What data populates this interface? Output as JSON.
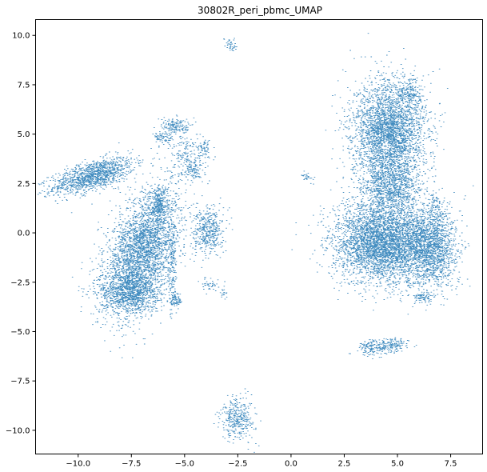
{
  "chart_data": {
    "type": "scatter",
    "title": "30802R_peri_pbmc_UMAP",
    "xlabel": "",
    "ylabel": "",
    "xlim": [
      -12,
      9
    ],
    "ylim": [
      -11.2,
      10.8
    ],
    "xticks": [
      -10.0,
      -7.5,
      -5.0,
      -2.5,
      0.0,
      2.5,
      5.0,
      7.5
    ],
    "xtick_labels": [
      "−10.0",
      "−7.5",
      "−5.0",
      "−2.5",
      "0.0",
      "2.5",
      "5.0",
      "7.5"
    ],
    "yticks": [
      10.0,
      7.5,
      5.0,
      2.5,
      0.0,
      -2.5,
      -5.0,
      -7.5,
      -10.0
    ],
    "ytick_labels": [
      "10.0",
      "7.5",
      "5.0",
      "2.5",
      "0.0",
      "−2.5",
      "−5.0",
      "−7.5",
      "−10.0"
    ],
    "grid": false,
    "marker_color": "#1f77b4",
    "approx_point_count": 20000,
    "clusters": [
      {
        "cx": -9.3,
        "cy": 2.9,
        "sx": 1.0,
        "sy": 0.35,
        "angle": 18,
        "weight": 0.065
      },
      {
        "cx": -7.0,
        "cy": -0.9,
        "sx": 0.75,
        "sy": 1.55,
        "angle": -18,
        "weight": 0.16
      },
      {
        "cx": -7.6,
        "cy": -3.0,
        "sx": 0.7,
        "sy": 0.55,
        "angle": 0,
        "weight": 0.05
      },
      {
        "cx": -6.2,
        "cy": 1.5,
        "sx": 0.2,
        "sy": 0.45,
        "angle": 0,
        "weight": 0.012
      },
      {
        "cx": -5.6,
        "cy": -1.8,
        "sx": 0.1,
        "sy": 1.2,
        "angle": 0,
        "weight": 0.008
      },
      {
        "cx": -5.4,
        "cy": -3.4,
        "sx": 0.15,
        "sy": 0.2,
        "angle": 0,
        "weight": 0.004
      },
      {
        "cx": -5.4,
        "cy": 5.4,
        "sx": 0.35,
        "sy": 0.2,
        "angle": 0,
        "weight": 0.008
      },
      {
        "cx": -6.0,
        "cy": 4.8,
        "sx": 0.25,
        "sy": 0.18,
        "angle": 0,
        "weight": 0.004
      },
      {
        "cx": -4.9,
        "cy": 3.9,
        "sx": 0.4,
        "sy": 0.6,
        "angle": 0,
        "weight": 0.01
      },
      {
        "cx": -4.6,
        "cy": 3.2,
        "sx": 0.25,
        "sy": 0.25,
        "angle": 0,
        "weight": 0.004
      },
      {
        "cx": -4.1,
        "cy": 4.2,
        "sx": 0.15,
        "sy": 0.25,
        "angle": 0,
        "weight": 0.003
      },
      {
        "cx": -3.9,
        "cy": 0.1,
        "sx": 0.35,
        "sy": 0.6,
        "angle": 0,
        "weight": 0.022
      },
      {
        "cx": -3.8,
        "cy": -2.6,
        "sx": 0.2,
        "sy": 0.15,
        "angle": 0,
        "weight": 0.002
      },
      {
        "cx": -3.2,
        "cy": -3.1,
        "sx": 0.08,
        "sy": 0.2,
        "angle": 0,
        "weight": 0.001
      },
      {
        "cx": -2.85,
        "cy": 9.55,
        "sx": 0.12,
        "sy": 0.2,
        "angle": 30,
        "weight": 0.002
      },
      {
        "cx": 0.75,
        "cy": 2.8,
        "sx": 0.2,
        "sy": 0.08,
        "angle": -35,
        "weight": 0.0015
      },
      {
        "cx": -2.5,
        "cy": -9.4,
        "sx": 0.4,
        "sy": 0.55,
        "angle": 0,
        "weight": 0.018
      },
      {
        "cx": 3.85,
        "cy": -5.8,
        "sx": 0.35,
        "sy": 0.2,
        "angle": 0,
        "weight": 0.008
      },
      {
        "cx": 4.8,
        "cy": -5.7,
        "sx": 0.35,
        "sy": 0.18,
        "angle": 0,
        "weight": 0.007
      },
      {
        "cx": 4.6,
        "cy": 5.1,
        "sx": 0.85,
        "sy": 1.3,
        "angle": 0,
        "weight": 0.16
      },
      {
        "cx": 5.6,
        "cy": 7.0,
        "sx": 0.3,
        "sy": 0.35,
        "angle": 0,
        "weight": 0.008
      },
      {
        "cx": 4.7,
        "cy": 2.3,
        "sx": 0.7,
        "sy": 0.7,
        "angle": 0,
        "weight": 0.05
      },
      {
        "cx": 4.3,
        "cy": -0.5,
        "sx": 1.15,
        "sy": 1.0,
        "angle": 0,
        "weight": 0.2
      },
      {
        "cx": 6.5,
        "cy": -0.8,
        "sx": 0.65,
        "sy": 1.0,
        "angle": 0,
        "weight": 0.08
      },
      {
        "cx": 6.2,
        "cy": -3.3,
        "sx": 0.25,
        "sy": 0.15,
        "angle": 0,
        "weight": 0.004
      },
      {
        "cx": 6.8,
        "cy": 1.0,
        "sx": 0.3,
        "sy": 0.5,
        "angle": 0,
        "weight": 0.006
      }
    ]
  }
}
